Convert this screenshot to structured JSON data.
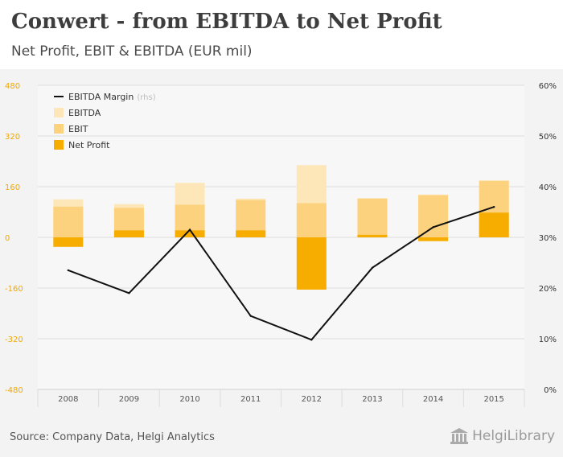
{
  "header": {
    "title": "Conwert - from EBITDA to Net Profit",
    "subtitle": "Net Profit, EBIT & EBITDA (EUR mil)"
  },
  "footer": {
    "source": "Source: Company Data, Helgi Analytics",
    "logo_text": "HelgiLibrary"
  },
  "colors": {
    "ebitda": "#fde7b9",
    "ebit": "#fcd27e",
    "net_profit": "#f7ad00",
    "margin_line": "#111111",
    "left_axis": "#f0a800",
    "right_axis": "#333333",
    "grid": "#dddddd"
  },
  "chart_data": {
    "type": "bar",
    "categories": [
      "2008",
      "2009",
      "2010",
      "2011",
      "2012",
      "2013",
      "2014",
      "2015"
    ],
    "series": [
      {
        "name": "EBITDA",
        "values": [
          120,
          105,
          172,
          122,
          228,
          124,
          135,
          180
        ]
      },
      {
        "name": "EBIT",
        "values": [
          97,
          93,
          103,
          118,
          108,
          122,
          133,
          178
        ]
      },
      {
        "name": "Net Profit",
        "values": [
          -30,
          22,
          22,
          22,
          -165,
          8,
          -12,
          78
        ]
      },
      {
        "name": "EBITDA Margin",
        "axis": "right",
        "unit": "%",
        "values": [
          23.5,
          19.0,
          31.5,
          14.5,
          9.8,
          24.0,
          32.0,
          36.0
        ]
      }
    ],
    "left_axis": {
      "ylim": [
        -480,
        480
      ],
      "ticks": [
        "480",
        "320",
        "160",
        "0",
        "-160",
        "-320",
        "-480"
      ]
    },
    "right_axis": {
      "ylim": [
        0,
        60
      ],
      "ticks": [
        "60%",
        "50%",
        "40%",
        "30%",
        "20%",
        "10%",
        "0%"
      ]
    },
    "legend": [
      {
        "label": "EBITDA Margin",
        "suffix": "(rhs)",
        "kind": "line"
      },
      {
        "label": "EBITDA",
        "kind": "box"
      },
      {
        "label": "EBIT",
        "kind": "box"
      },
      {
        "label": "Net Profit",
        "kind": "box"
      }
    ],
    "legend_position": "top-left",
    "grid": true
  }
}
